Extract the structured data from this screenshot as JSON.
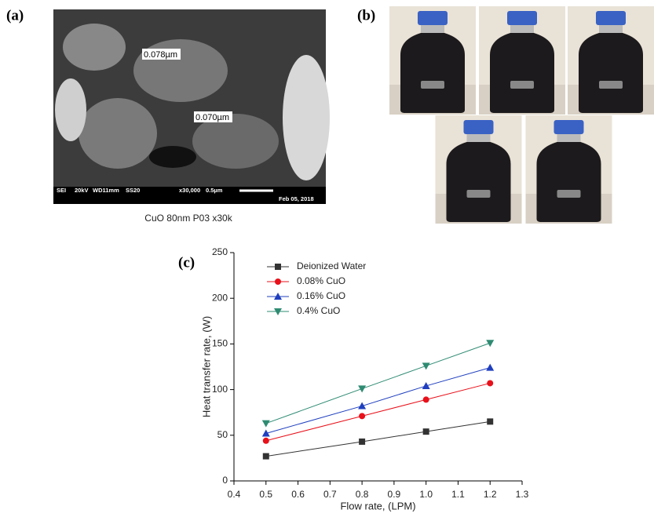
{
  "panels": {
    "a": {
      "label": "(a)",
      "scale_labels": [
        "0.078µm",
        "0.070µm"
      ],
      "info_bar": [
        "SEI",
        "20kV",
        "WD11mm",
        "SS20",
        "x30,000",
        "0.5µm",
        "Feb 05, 2018"
      ],
      "caption": "CuO 80nm P03 x30k"
    },
    "b": {
      "label": "(b)"
    },
    "c": {
      "label": "(c)"
    }
  },
  "chart_data": {
    "type": "line",
    "x_label": "Flow rate, (LPM)",
    "y_label": "Heat transfer rate, (W)",
    "x": [
      0.5,
      0.8,
      1.0,
      1.2
    ],
    "series": [
      {
        "name": "Deionized Water",
        "color": "#333333",
        "marker": "square",
        "values": [
          27,
          43,
          54,
          65
        ]
      },
      {
        "name": "0.08% CuO",
        "color": "#e8101a",
        "marker": "circle",
        "values": [
          44,
          71,
          89,
          107
        ]
      },
      {
        "name": "0.16% CuO",
        "color": "#1f3fbf",
        "marker": "triangle-up",
        "values": [
          52,
          82,
          104,
          124
        ]
      },
      {
        "name": "0.4% CuO",
        "color": "#2e8b72",
        "marker": "triangle-down",
        "values": [
          63,
          101,
          126,
          151
        ]
      }
    ],
    "xlim": [
      0.4,
      1.3
    ],
    "ylim": [
      0,
      250
    ],
    "xticks": [
      0.4,
      0.5,
      0.6,
      0.7,
      0.8,
      0.9,
      {
        "value": 1,
        "label": "1.0"
      },
      1.1,
      1.2,
      1.3
    ],
    "yticks": [
      0,
      50,
      100,
      150,
      200,
      250
    ],
    "legend": "upper-left"
  }
}
